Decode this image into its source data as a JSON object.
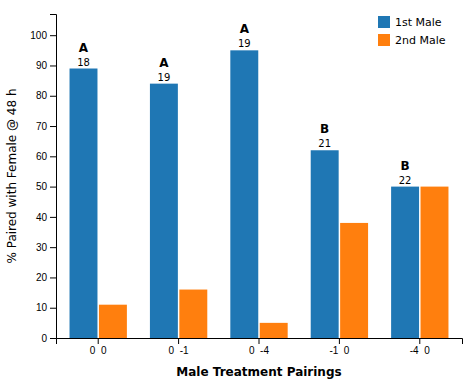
{
  "chart_data": {
    "type": "bar",
    "categories": [
      "0  0",
      "0  -1",
      "0  -4",
      "-1  0",
      "-4  0"
    ],
    "series": [
      {
        "name": "1st Male",
        "values": [
          89,
          84,
          95,
          62,
          50
        ],
        "n": [
          18,
          19,
          19,
          21,
          22
        ],
        "significance": [
          "A",
          "A",
          "A",
          "B",
          "B"
        ]
      },
      {
        "name": "2nd Male",
        "values": [
          11,
          16,
          5,
          38,
          50
        ]
      }
    ],
    "xlabel": "Male Treatment Pairings",
    "ylabel": "% Paired with Female @ 48 h",
    "ylim": [
      0,
      107
    ],
    "yticks": [
      0,
      10,
      20,
      30,
      40,
      50,
      60,
      70,
      80,
      90,
      100
    ],
    "legend": "upper right",
    "grid": false
  }
}
